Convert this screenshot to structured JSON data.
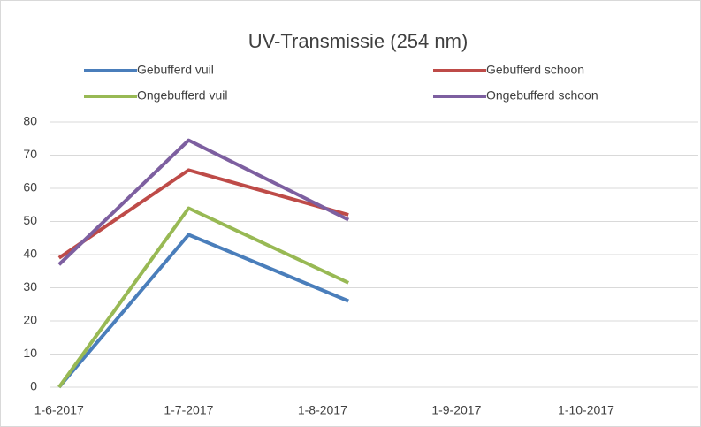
{
  "chart_data": {
    "type": "line",
    "title": "UV-Transmissie (254 nm)",
    "x": [
      42887,
      42917,
      42954
    ],
    "series": [
      {
        "name": "Gebufferd vuil",
        "color": "#4a7ebb",
        "values": [
          0,
          46,
          26
        ]
      },
      {
        "name": "Gebufferd  schoon",
        "color": "#be4b48",
        "values": [
          39,
          65.5,
          52
        ]
      },
      {
        "name": "Ongebufferd vuil",
        "color": "#98b954",
        "values": [
          0,
          54,
          31.5
        ]
      },
      {
        "name": "Ongebufferd schoon",
        "color": "#7d5fa0",
        "values": [
          37,
          74.5,
          50.5
        ]
      }
    ],
    "xlim": [
      42885,
      43035
    ],
    "xticks": [
      {
        "value": 42887,
        "label": "1-6-2017"
      },
      {
        "value": 42917,
        "label": "1-7-2017"
      },
      {
        "value": 42948,
        "label": "1-8-2017"
      },
      {
        "value": 42979,
        "label": "1-9-2017"
      },
      {
        "value": 43009,
        "label": "1-10-2017"
      }
    ],
    "ylim": [
      0,
      80
    ],
    "yticks": [
      0,
      10,
      20,
      30,
      40,
      50,
      60,
      70,
      80
    ],
    "grid": true
  }
}
